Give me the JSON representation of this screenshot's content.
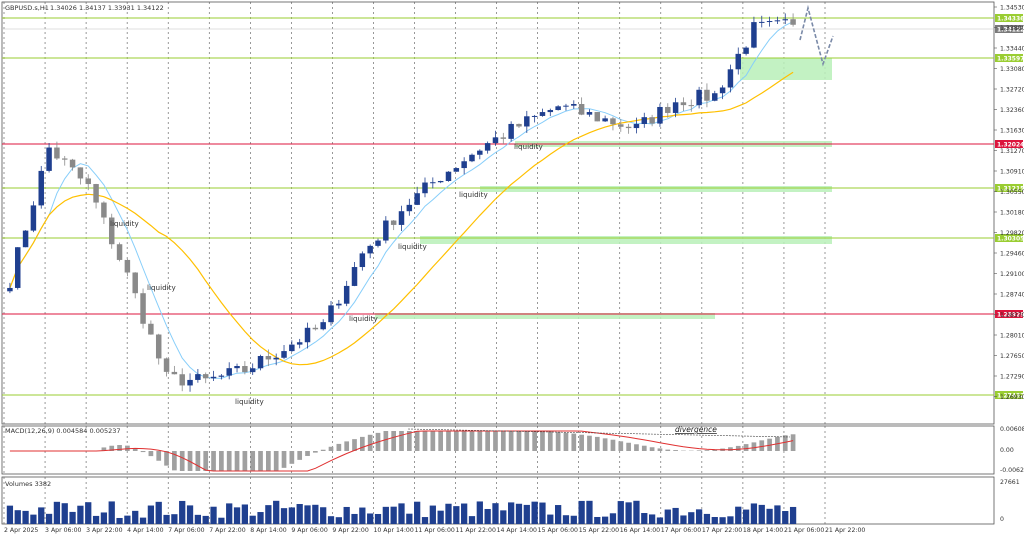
{
  "header": {
    "symbol": "GBPUSD.s,H1",
    "ohlc": "1.34026 1.34137 1.33931 1.34122"
  },
  "price_axis": {
    "ticks": [
      "1.34530",
      "1.33800",
      "1.33440",
      "1.33080",
      "1.32720",
      "1.32360",
      "1.31630",
      "1.31270",
      "1.30910",
      "1.30550",
      "1.30180",
      "1.29820",
      "1.29460",
      "1.29100",
      "1.28740",
      "1.28370",
      "1.28010",
      "1.27650",
      "1.27290",
      "1.26930"
    ],
    "current_price": "1.34122",
    "levels": [
      {
        "label": "1.34336",
        "color": "#9acd32"
      },
      {
        "label": "1.33597",
        "color": "#9acd32"
      },
      {
        "label": "1.32024",
        "color": "#dc143c"
      },
      {
        "label": "1.31215",
        "color": "#9acd32"
      },
      {
        "label": "1.30305",
        "color": "#9acd32"
      },
      {
        "label": "1.28929",
        "color": "#dc143c"
      },
      {
        "label": "1.27432",
        "color": "#9acd32"
      }
    ]
  },
  "annotations": {
    "liquidity_label": "liquidity",
    "divergence_label": "divergence"
  },
  "macd_panel": {
    "title": "MACD(12,26,9) 0.004584 0.005237",
    "ticks": [
      "0.006088",
      "0.00",
      "-0.006255"
    ]
  },
  "volume_panel": {
    "title": "Volumes 3382",
    "ticks": [
      "27661",
      "0"
    ]
  },
  "time_axis": {
    "labels": [
      "2 Apr 2025",
      "3 Apr 06:00",
      "3 Apr 22:00",
      "4 Apr 14:00",
      "7 Apr 06:00",
      "7 Apr 22:00",
      "8 Apr 14:00",
      "9 Apr 06:00",
      "9 Apr 22:00",
      "10 Apr 14:00",
      "11 Apr 06:00",
      "11 Apr 22:00",
      "14 Apr 14:00",
      "15 Apr 06:00",
      "15 Apr 22:00",
      "16 Apr 14:00",
      "17 Apr 06:00",
      "17 Apr 22:00",
      "18 Apr 14:00",
      "21 Apr 06:00",
      "21 Apr 22:00"
    ]
  },
  "colors": {
    "candle_up": "#1f3f8f",
    "candle_down": "#8a8a8a",
    "ma_fast": "#87cefa",
    "ma_slow": "#ffc000",
    "support_zone": "#b9f0b9",
    "macd_signal": "#e03030",
    "macd_hist": "#a0a0a0",
    "volume_bars": "#1f3f8f"
  },
  "chart_data": {
    "type": "candlestick",
    "symbol": "GBPUSD",
    "timeframe": "H1",
    "y_range": [
      1.2693,
      1.3453
    ],
    "close_path": [
      {
        "x": "2 Apr 2025",
        "y": 1.2952
      },
      {
        "x": "3 Apr 06:00",
        "y": 1.319
      },
      {
        "x": "3 Apr 22:00",
        "y": 1.312
      },
      {
        "x": "4 Apr 14:00",
        "y": 1.296
      },
      {
        "x": "7 Apr 06:00",
        "y": 1.2775
      },
      {
        "x": "7 Apr 22:00",
        "y": 1.277
      },
      {
        "x": "8 Apr 14:00",
        "y": 1.279
      },
      {
        "x": "9 Apr 06:00",
        "y": 1.283
      },
      {
        "x": "9 Apr 22:00",
        "y": 1.287
      },
      {
        "x": "10 Apr 14:00",
        "y": 1.3
      },
      {
        "x": "11 Apr 06:00",
        "y": 1.308
      },
      {
        "x": "11 Apr 22:00",
        "y": 1.314
      },
      {
        "x": "14 Apr 14:00",
        "y": 1.319
      },
      {
        "x": "15 Apr 06:00",
        "y": 1.323
      },
      {
        "x": "15 Apr 22:00",
        "y": 1.3265
      },
      {
        "x": "16 Apr 14:00",
        "y": 1.3245
      },
      {
        "x": "17 Apr 06:00",
        "y": 1.3225
      },
      {
        "x": "17 Apr 22:00",
        "y": 1.3275
      },
      {
        "x": "18 Apr 14:00",
        "y": 1.3285
      },
      {
        "x": "21 Apr 06:00",
        "y": 1.3405
      },
      {
        "x": "21 Apr 22:00",
        "y": 1.3412
      }
    ]
  }
}
